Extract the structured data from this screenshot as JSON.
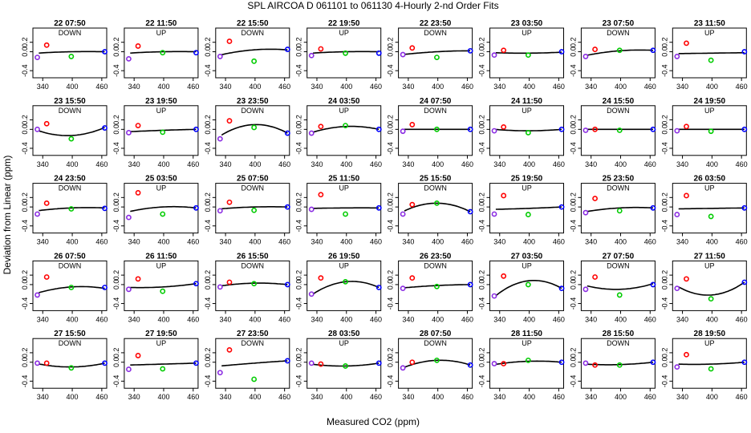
{
  "title": "SPL   AIRCOA D   061101 to 061130   4-Hourly 2-nd Order Fits",
  "xlabel": "Measured CO2 (ppm)",
  "ylabel": "Deviation from Linear (ppm)",
  "colors": {
    "low": "#8a2be2",
    "mid1": "#ff0000",
    "mid2": "#00cc00",
    "high": "#0000ff",
    "fit": "#000000"
  },
  "chart_data": {
    "type": "scatter",
    "xlim": [
      320,
      470
    ],
    "ylim": [
      -0.55,
      0.5
    ],
    "xticks": [
      340,
      400,
      460
    ],
    "yticks": [
      -0.4,
      0.0,
      0.2
    ],
    "ytick_labels": [
      "-0.4",
      "0.0",
      "0.2"
    ],
    "standard_x": [
      329,
      348,
      398,
      466
    ],
    "panels": [
      {
        "label": "22 07:50",
        "dir": "DOWN",
        "y": [
          -0.12,
          0.14,
          -0.1,
          0.0
        ],
        "fit": [
          -0.03,
          0.0,
          0.0
        ]
      },
      {
        "label": "22 11:50",
        "dir": "UP",
        "y": [
          -0.15,
          0.12,
          -0.02,
          -0.02
        ],
        "fit": [
          -0.03,
          0.0,
          0.0
        ]
      },
      {
        "label": "22 15:50",
        "dir": "DOWN",
        "y": [
          -0.1,
          0.22,
          -0.2,
          0.05
        ],
        "fit": [
          -0.07,
          0.04,
          0.04
        ]
      },
      {
        "label": "22 19:50",
        "dir": "UP",
        "y": [
          -0.08,
          0.06,
          -0.03,
          -0.03
        ],
        "fit": [
          -0.03,
          0.0,
          0.0
        ]
      },
      {
        "label": "22 23:50",
        "dir": "DOWN",
        "y": [
          -0.06,
          0.08,
          -0.12,
          0.02
        ],
        "fit": [
          -0.06,
          0.0,
          0.02
        ]
      },
      {
        "label": "23 03:50",
        "dir": "UP",
        "y": [
          -0.07,
          0.03,
          -0.07,
          0.0
        ],
        "fit": [
          -0.02,
          -0.03,
          -0.01
        ]
      },
      {
        "label": "23 07:50",
        "dir": "DOWN",
        "y": [
          -0.1,
          0.05,
          0.03,
          0.03
        ],
        "fit": [
          -0.08,
          0.02,
          0.03
        ]
      },
      {
        "label": "23 11:50",
        "dir": "UP",
        "y": [
          -0.1,
          0.18,
          -0.18,
          0.0
        ],
        "fit": [
          -0.04,
          -0.03,
          -0.02
        ]
      },
      {
        "label": "23 15:50",
        "dir": "DOWN",
        "y": [
          0.0,
          0.12,
          -0.2,
          0.03
        ],
        "fit": [
          -0.02,
          -0.13,
          0.04
        ]
      },
      {
        "label": "23 19:50",
        "dir": "UP",
        "y": [
          -0.07,
          0.08,
          -0.06,
          0.0
        ],
        "fit": [
          -0.05,
          -0.02,
          0.0
        ]
      },
      {
        "label": "23 23:50",
        "dir": "DOWN",
        "y": [
          -0.2,
          0.18,
          0.04,
          -0.08
        ],
        "fit": [
          -0.14,
          0.1,
          -0.08
        ]
      },
      {
        "label": "24 03:50",
        "dir": "UP",
        "y": [
          -0.08,
          0.06,
          0.08,
          0.0
        ],
        "fit": [
          -0.07,
          0.06,
          0.0
        ]
      },
      {
        "label": "24 07:50",
        "dir": "DOWN",
        "y": [
          -0.04,
          0.1,
          0.0,
          0.0
        ],
        "fit": [
          0.0,
          0.0,
          0.0
        ]
      },
      {
        "label": "24 11:50",
        "dir": "UP",
        "y": [
          -0.03,
          0.05,
          -0.07,
          0.0
        ],
        "fit": [
          0.0,
          -0.03,
          0.0
        ]
      },
      {
        "label": "24 15:50",
        "dir": "DOWN",
        "y": [
          -0.02,
          0.0,
          -0.02,
          0.0
        ],
        "fit": [
          0.0,
          0.0,
          0.0
        ]
      },
      {
        "label": "24 19:50",
        "dir": "UP",
        "y": [
          -0.03,
          0.06,
          -0.04,
          0.0
        ],
        "fit": [
          0.0,
          0.0,
          0.0
        ]
      },
      {
        "label": "24 23:50",
        "dir": "DOWN",
        "y": [
          -0.15,
          0.08,
          -0.04,
          -0.03
        ],
        "fit": [
          -0.08,
          -0.02,
          -0.02
        ]
      },
      {
        "label": "25 03:50",
        "dir": "UP",
        "y": [
          -0.22,
          0.3,
          -0.15,
          -0.02
        ],
        "fit": [
          -0.1,
          0.0,
          -0.02
        ]
      },
      {
        "label": "25 07:50",
        "dir": "DOWN",
        "y": [
          -0.08,
          0.1,
          -0.07,
          0.0
        ],
        "fit": [
          -0.04,
          0.0,
          0.0
        ]
      },
      {
        "label": "25 11:50",
        "dir": "UP",
        "y": [
          -0.05,
          0.26,
          -0.15,
          -0.02
        ],
        "fit": [
          -0.03,
          -0.02,
          -0.02
        ]
      },
      {
        "label": "25 15:50",
        "dir": "DOWN",
        "y": [
          -0.15,
          0.05,
          0.08,
          -0.1
        ],
        "fit": [
          -0.1,
          0.08,
          -0.1
        ]
      },
      {
        "label": "25 19:50",
        "dir": "UP",
        "y": [
          -0.15,
          0.24,
          -0.16,
          0.0
        ],
        "fit": [
          -0.05,
          -0.03,
          0.0
        ]
      },
      {
        "label": "25 23:50",
        "dir": "DOWN",
        "y": [
          -0.12,
          0.18,
          -0.08,
          -0.02
        ],
        "fit": [
          -0.1,
          -0.02,
          -0.02
        ]
      },
      {
        "label": "26 03:50",
        "dir": "UP",
        "y": [
          -0.16,
          0.24,
          -0.2,
          -0.02
        ],
        "fit": [
          -0.04,
          -0.03,
          -0.02
        ]
      },
      {
        "label": "26 07:50",
        "dir": "DOWN",
        "y": [
          -0.22,
          0.16,
          -0.06,
          -0.06
        ],
        "fit": [
          -0.18,
          -0.05,
          -0.08
        ]
      },
      {
        "label": "26 11:50",
        "dir": "UP",
        "y": [
          -0.1,
          0.12,
          -0.14,
          0.02
        ],
        "fit": [
          -0.06,
          -0.05,
          0.02
        ]
      },
      {
        "label": "26 15:50",
        "dir": "DOWN",
        "y": [
          -0.05,
          0.05,
          0.02,
          0.0
        ],
        "fit": [
          -0.03,
          0.03,
          0.0
        ]
      },
      {
        "label": "26 19:50",
        "dir": "UP",
        "y": [
          -0.2,
          0.14,
          0.06,
          -0.06
        ],
        "fit": [
          -0.22,
          0.06,
          -0.06
        ]
      },
      {
        "label": "26 23:50",
        "dir": "DOWN",
        "y": [
          -0.08,
          0.14,
          -0.04,
          0.0
        ],
        "fit": [
          -0.07,
          -0.02,
          0.0
        ]
      },
      {
        "label": "27 03:50",
        "dir": "UP",
        "y": [
          -0.24,
          0.18,
          0.0,
          -0.08
        ],
        "fit": [
          -0.26,
          0.08,
          -0.08
        ]
      },
      {
        "label": "27 07:50",
        "dir": "DOWN",
        "y": [
          -0.1,
          0.16,
          -0.22,
          0.0
        ],
        "fit": [
          -0.02,
          -0.1,
          0.02
        ]
      },
      {
        "label": "27 11:50",
        "dir": "UP",
        "y": [
          -0.08,
          0.12,
          -0.3,
          0.05
        ],
        "fit": [
          -0.03,
          -0.22,
          0.05
        ]
      },
      {
        "label": "27 15:50",
        "dir": "DOWN",
        "y": [
          -0.02,
          -0.02,
          -0.12,
          -0.02
        ],
        "fit": [
          -0.03,
          -0.1,
          -0.02
        ]
      },
      {
        "label": "27 19:50",
        "dir": "UP",
        "y": [
          -0.15,
          0.14,
          -0.14,
          -0.02
        ],
        "fit": [
          -0.06,
          -0.04,
          -0.02
        ]
      },
      {
        "label": "27 23:50",
        "dir": "DOWN",
        "y": [
          -0.22,
          0.26,
          -0.36,
          0.03
        ],
        "fit": [
          -0.08,
          -0.02,
          0.03
        ]
      },
      {
        "label": "28 03:50",
        "dir": "UP",
        "y": [
          -0.02,
          -0.04,
          -0.08,
          -0.02
        ],
        "fit": [
          -0.04,
          -0.08,
          -0.02
        ]
      },
      {
        "label": "28 07:50",
        "dir": "DOWN",
        "y": [
          -0.12,
          0.0,
          0.04,
          -0.06
        ],
        "fit": [
          -0.12,
          0.04,
          -0.06
        ]
      },
      {
        "label": "28 11:50",
        "dir": "UP",
        "y": [
          -0.03,
          -0.03,
          0.04,
          0.0
        ],
        "fit": [
          -0.05,
          0.02,
          0.0
        ]
      },
      {
        "label": "28 15:50",
        "dir": "DOWN",
        "y": [
          -0.02,
          -0.06,
          -0.06,
          0.0
        ],
        "fit": [
          -0.04,
          -0.05,
          0.0
        ]
      },
      {
        "label": "28 19:50",
        "dir": "UP",
        "y": [
          -0.1,
          0.16,
          -0.14,
          0.0
        ],
        "fit": [
          -0.04,
          -0.04,
          0.0
        ]
      }
    ]
  }
}
